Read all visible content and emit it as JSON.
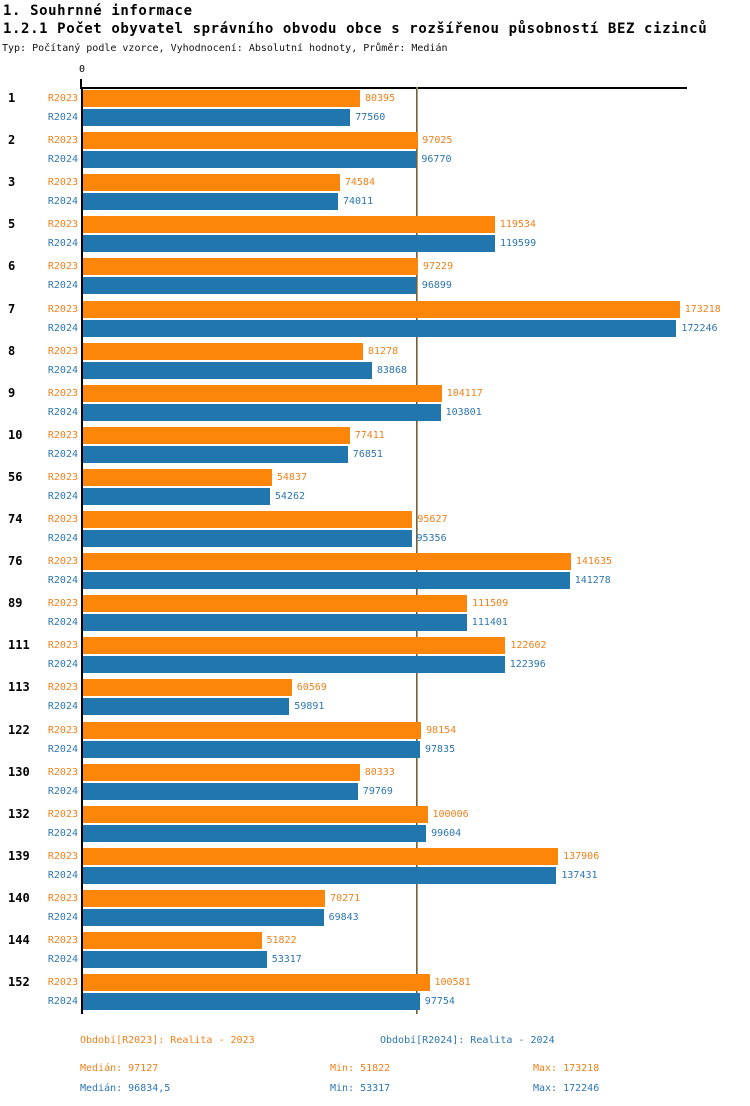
{
  "header": {
    "title": "1. Souhrnné informace",
    "subtitle": "1.2.1 Počet obyvatel správního obvodu obce s rozšířenou působností BEZ cizinců",
    "meta": "Typ: Počítaný podle vzorce, Vyhodnocení: Absolutní hodnoty, Průměr: Medián"
  },
  "chart_data": {
    "type": "bar",
    "orientation": "horizontal",
    "title": "1.2.1 Počet obyvatel správního obvodu obce s rozšířenou působností BEZ cizinců",
    "xlabel": "",
    "ylabel": "",
    "xlim": [
      0,
      174000
    ],
    "grid": false,
    "zero_tick_label": "0",
    "categories": [
      "1",
      "2",
      "3",
      "5",
      "6",
      "7",
      "8",
      "9",
      "10",
      "56",
      "74",
      "76",
      "89",
      "111",
      "113",
      "122",
      "130",
      "132",
      "139",
      "140",
      "144",
      "152"
    ],
    "series": [
      {
        "name": "R2023",
        "color": "#FB8609",
        "values": [
          80395,
          97025,
          74584,
          119534,
          97229,
          173218,
          81278,
          104117,
          77411,
          54837,
          95627,
          141635,
          111509,
          122602,
          60569,
          98154,
          80333,
          100006,
          137906,
          70271,
          51822,
          100581
        ]
      },
      {
        "name": "R2024",
        "color": "#2176AE",
        "values": [
          77560,
          96770,
          74011,
          119599,
          96899,
          172246,
          83868,
          103801,
          76851,
          54262,
          95356,
          141278,
          111401,
          122396,
          59891,
          97835,
          79769,
          99604,
          137431,
          69843,
          53317,
          97754
        ]
      }
    ],
    "median_lines": [
      {
        "series": "R2023",
        "value": 97127,
        "color": "#FB8609"
      },
      {
        "series": "R2024",
        "value": 96834.5,
        "color": "#2176AE"
      }
    ]
  },
  "footer": {
    "legend": [
      {
        "label": "Období[R2023]: Realita - 2023",
        "color": "#F0801A"
      },
      {
        "label": "Období[R2024]: Realita - 2024",
        "color": "#2C76B0"
      }
    ],
    "stats": [
      {
        "median": "Medián: 97127",
        "min": "Min: 51822",
        "max": "Max: 173218",
        "color": "#F0801A"
      },
      {
        "median": "Medián: 96834,5",
        "min": "Min: 53317",
        "max": "Max: 172246",
        "color": "#2C76B0"
      }
    ]
  }
}
